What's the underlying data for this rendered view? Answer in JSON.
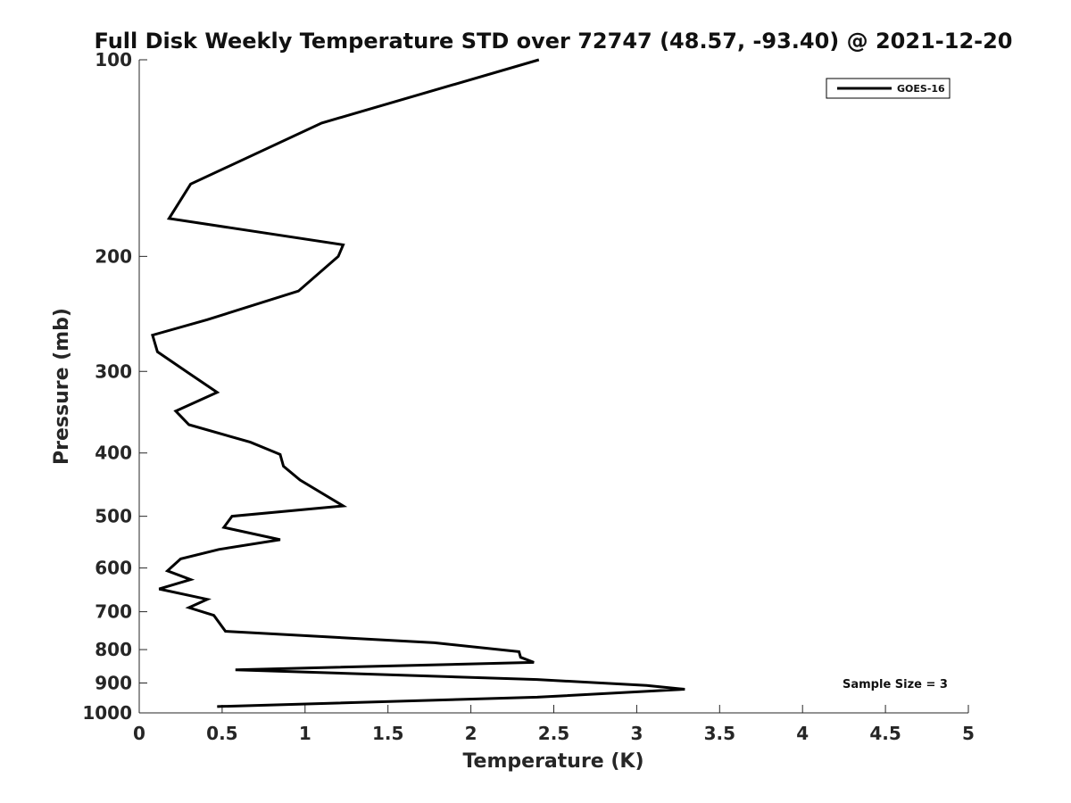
{
  "chart_data": {
    "type": "line",
    "title": "Full Disk Weekly Temperature STD over 72747 (48.57, -93.40) @ 2021-12-20",
    "xlabel": "Temperature (K)",
    "ylabel": "Pressure (mb)",
    "xlim": [
      0,
      5
    ],
    "ylim": [
      100,
      1000
    ],
    "yscale": "log",
    "y_reversed": true,
    "xticks": [
      0,
      0.5,
      1,
      1.5,
      2,
      2.5,
      3,
      3.5,
      4,
      4.5,
      5
    ],
    "xtick_labels": [
      "0",
      "0.5",
      "1",
      "1.5",
      "2",
      "2.5",
      "3",
      "3.5",
      "4",
      "4.5",
      "5"
    ],
    "yticks": [
      100,
      200,
      300,
      400,
      500,
      600,
      700,
      800,
      900,
      1000
    ],
    "ytick_labels": [
      "100",
      "200",
      "300",
      "400",
      "500",
      "600",
      "700",
      "800",
      "900",
      "1000"
    ],
    "legend": {
      "position": "top-right",
      "entries": [
        "GOES-16"
      ]
    },
    "annotation": "Sample Size = 3",
    "series": [
      {
        "name": "GOES-16",
        "color": "#000000",
        "points": [
          [
            2.41,
            100
          ],
          [
            1.1,
            125
          ],
          [
            0.31,
            155
          ],
          [
            0.18,
            175
          ],
          [
            1.23,
            192
          ],
          [
            1.2,
            200
          ],
          [
            0.96,
            226
          ],
          [
            0.41,
            250
          ],
          [
            0.08,
            264
          ],
          [
            0.11,
            280
          ],
          [
            0.3,
            302
          ],
          [
            0.47,
            323
          ],
          [
            0.22,
            345
          ],
          [
            0.3,
            362
          ],
          [
            0.67,
            385
          ],
          [
            0.85,
            402
          ],
          [
            0.87,
            419
          ],
          [
            0.97,
            440
          ],
          [
            1.23,
            482
          ],
          [
            0.56,
            500
          ],
          [
            0.51,
            520
          ],
          [
            0.85,
            543
          ],
          [
            0.48,
            562
          ],
          [
            0.25,
            581
          ],
          [
            0.17,
            606
          ],
          [
            0.31,
            625
          ],
          [
            0.12,
            646
          ],
          [
            0.41,
            670
          ],
          [
            0.3,
            690
          ],
          [
            0.45,
            709
          ],
          [
            0.52,
            750
          ],
          [
            1.78,
            781
          ],
          [
            2.29,
            806
          ],
          [
            2.3,
            822
          ],
          [
            2.38,
            837
          ],
          [
            0.58,
            859
          ],
          [
            2.4,
            889
          ],
          [
            3.06,
            908
          ],
          [
            3.29,
            920
          ],
          [
            2.4,
            946
          ],
          [
            0.47,
            978
          ]
        ]
      }
    ]
  }
}
